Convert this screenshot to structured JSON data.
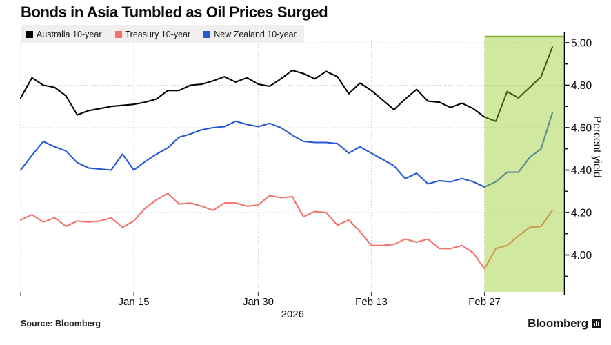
{
  "title": "Bonds in Asia Tumbled as Oil Prices Surged",
  "source_label": "Source: Bloomberg",
  "branding": "Bloomberg",
  "chart_data": {
    "type": "line",
    "title": "Bonds in Asia Tumbled as Oil Prices Surged",
    "ylabel": "Percent yield",
    "legend_position": "top-left",
    "x_axis": {
      "n_points": 48,
      "tick_labels": [
        "Jan 15",
        "Jan 30",
        "Feb 13",
        "Feb 27"
      ],
      "tick_indices": [
        10,
        21,
        31,
        41
      ],
      "grid_indices": [
        0,
        10,
        21,
        31,
        41
      ],
      "year_label": "2026"
    },
    "y_axis": {
      "min": 3.826,
      "max": 5.0455,
      "major_tick_labels": [
        "5.00",
        "4.80",
        "4.60",
        "4.40",
        "4.20",
        "4.00"
      ],
      "minor_ticks": [
        4.9,
        4.7,
        4.5,
        4.3,
        4.1,
        3.9
      ],
      "grid": true
    },
    "highlight_region": {
      "from_index": 41,
      "to_right_edge": true,
      "fill": "#96cb2c",
      "opacity": 0.45,
      "border_top_color": "#84b037"
    },
    "series": [
      {
        "name": "Australia 10-year",
        "color": "#000000",
        "values": [
          4.74,
          4.835,
          4.8,
          4.79,
          4.75,
          4.66,
          4.68,
          4.69,
          4.7,
          4.705,
          4.71,
          4.72,
          4.735,
          4.775,
          4.775,
          4.8,
          4.805,
          4.82,
          4.84,
          4.815,
          4.835,
          4.805,
          4.795,
          4.83,
          4.87,
          4.855,
          4.83,
          4.865,
          4.84,
          4.76,
          4.81,
          4.775,
          4.73,
          4.685,
          4.735,
          4.78,
          4.725,
          4.72,
          4.695,
          4.715,
          4.69,
          4.65,
          4.63,
          4.77,
          4.74,
          4.79,
          4.84,
          4.98
        ]
      },
      {
        "name": "Treasury 10-year",
        "color": "#f4736c",
        "values": [
          4.165,
          4.19,
          4.155,
          4.175,
          4.135,
          4.16,
          4.155,
          4.16,
          4.175,
          4.13,
          4.16,
          4.22,
          4.26,
          4.29,
          4.24,
          4.245,
          4.23,
          4.21,
          4.245,
          4.245,
          4.23,
          4.235,
          4.28,
          4.27,
          4.275,
          4.18,
          4.205,
          4.2,
          4.14,
          4.165,
          4.11,
          4.045,
          4.045,
          4.05,
          4.075,
          4.06,
          4.075,
          4.03,
          4.03,
          4.045,
          4.01,
          3.935,
          4.03,
          4.045,
          4.09,
          4.13,
          4.135,
          4.21
        ]
      },
      {
        "name": "New Zealand 10-year",
        "color": "#2558d4",
        "values": [
          4.4,
          4.47,
          4.535,
          4.51,
          4.49,
          4.435,
          4.41,
          4.405,
          4.4,
          4.475,
          4.4,
          4.44,
          4.475,
          4.505,
          4.555,
          4.57,
          4.59,
          4.6,
          4.605,
          4.63,
          4.615,
          4.605,
          4.62,
          4.6,
          4.565,
          4.535,
          4.53,
          4.53,
          4.525,
          4.48,
          4.51,
          4.48,
          4.45,
          4.42,
          4.36,
          4.385,
          4.335,
          4.35,
          4.345,
          4.36,
          4.345,
          4.32,
          4.345,
          4.39,
          4.39,
          4.46,
          4.5,
          4.67
        ]
      }
    ]
  }
}
